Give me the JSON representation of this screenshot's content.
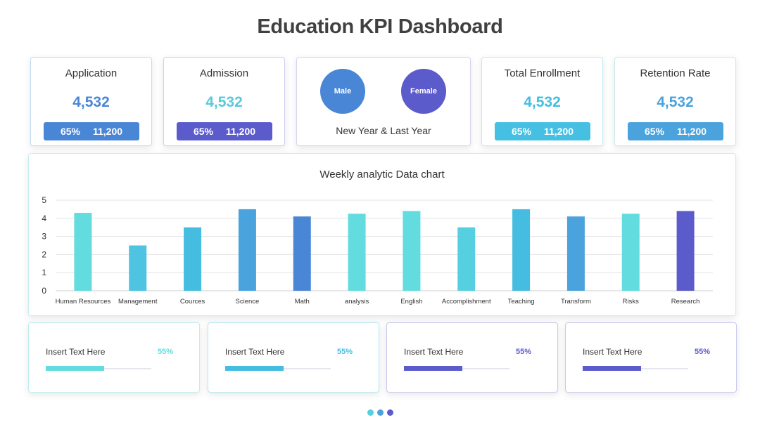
{
  "page": {
    "title": "Education KPI Dashboard"
  },
  "kpis": [
    {
      "label": "Application",
      "value": "4,532",
      "percent": "65%",
      "total": "11,200",
      "value_color": "#4a86d6",
      "bar_color": "#4a86d6"
    },
    {
      "label": "Admission",
      "value": "4,532",
      "percent": "65%",
      "total": "11,200",
      "value_color": "#5bc8dc",
      "bar_color": "#5b5bcc"
    },
    {
      "label": "Total Enrollment",
      "value": "4,532",
      "percent": "65%",
      "total": "11,200",
      "value_color": "#45bde0",
      "bar_color": "#45c0e2"
    },
    {
      "label": "Retention Rate",
      "value": "4,532",
      "percent": "65%",
      "total": "11,200",
      "value_color": "#4aa3dc",
      "bar_color": "#4aa3dc"
    }
  ],
  "gender": {
    "male_label": "Male",
    "female_label": "Female",
    "caption": "New Year & Last Year",
    "male_color": "#4a86d6",
    "female_color": "#5b5bcc"
  },
  "chart_data": {
    "type": "bar",
    "title": "Weekly analytic Data chart",
    "categories": [
      "Human Resources",
      "Management",
      "Cources",
      "Science",
      "Math",
      "analysis",
      "English",
      "Accomplishment",
      "Teaching",
      "Transform",
      "Risks",
      "Research"
    ],
    "values": [
      4.3,
      2.5,
      3.5,
      4.5,
      4.1,
      4.25,
      4.4,
      3.5,
      4.5,
      4.1,
      4.25,
      4.4
    ],
    "colors": [
      "#63dcdf",
      "#4ec4e2",
      "#45bde0",
      "#4aa3dc",
      "#4a86d6",
      "#63dcdf",
      "#63dcdf",
      "#56cfe0",
      "#45bde0",
      "#4aa3dc",
      "#63dcdf",
      "#5b5bcc"
    ],
    "yticks": [
      0,
      1,
      2,
      3,
      4,
      5
    ],
    "ylim": [
      0,
      5
    ],
    "xlabel": "",
    "ylabel": "",
    "grid": true
  },
  "progress": [
    {
      "label": "Insert Text Here",
      "percent_label": "55%",
      "value": 0.55,
      "color": "#63dcdf",
      "border": "#bdeef0"
    },
    {
      "label": "Insert Text Here",
      "percent_label": "55%",
      "value": 0.55,
      "color": "#45bde0",
      "border": "#b6e6f3"
    },
    {
      "label": "Insert Text Here",
      "percent_label": "55%",
      "value": 0.55,
      "color": "#5b5bcc",
      "border": "#c9c9ef"
    },
    {
      "label": "Insert Text Here",
      "percent_label": "55%",
      "value": 0.55,
      "color": "#5b5bcc",
      "border": "#c9c9ef"
    }
  ],
  "pager": {
    "dots": [
      "#56cfe0",
      "#4aa3dc",
      "#5b5bcc"
    ]
  }
}
